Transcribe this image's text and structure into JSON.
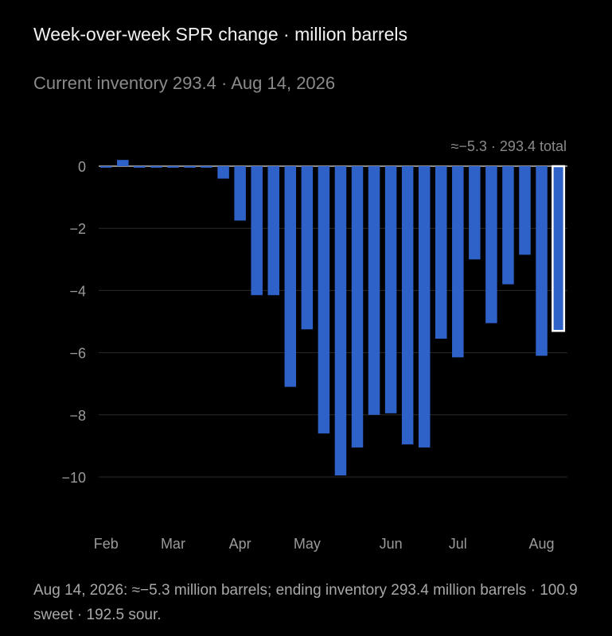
{
  "header": {
    "title": "Week-over-week SPR change · million barrels",
    "subtitle": "Current inventory 293.4 · Aug 14, 2026"
  },
  "annotation": "≈−5.3 · 293.4 total",
  "caption": "Aug 14, 2026: ≈−5.3 million barrels; ending inventory 293.4 million barrels · 100.9 sweet · 192.5 sour.",
  "colors": {
    "bar": "#2f62c9",
    "background": "#000000",
    "grid": "#2a2a2a",
    "axis_text": "#9a9a9a",
    "highlight_outline": "#ffffff"
  },
  "chart_data": {
    "type": "bar",
    "title": "Week-over-week SPR change · million barrels",
    "xlabel": "",
    "ylabel": "",
    "ylim": [
      -11.3,
      0.6
    ],
    "yticks": [
      0,
      -2,
      -4,
      -6,
      -8,
      -10
    ],
    "ytick_labels": [
      "0",
      "−2",
      "−4",
      "−6",
      "−8",
      "−10"
    ],
    "x_month_labels": [
      "Feb",
      "Mar",
      "Apr",
      "May",
      "Jun",
      "Jul",
      "Aug"
    ],
    "x_month_label_bar_index": [
      0,
      4,
      8,
      12,
      17,
      21,
      26
    ],
    "values": [
      -0.05,
      0.2,
      -0.05,
      -0.05,
      -0.05,
      -0.05,
      -0.05,
      -0.4,
      -1.75,
      -4.15,
      -4.15,
      -7.1,
      -5.25,
      -8.6,
      -9.95,
      -9.05,
      -8.0,
      -7.95,
      -8.95,
      -9.05,
      -5.55,
      -6.15,
      -3.0,
      -5.05,
      -3.8,
      -2.85,
      -6.1,
      -5.3
    ],
    "highlighted_index": 27,
    "grid": true
  }
}
